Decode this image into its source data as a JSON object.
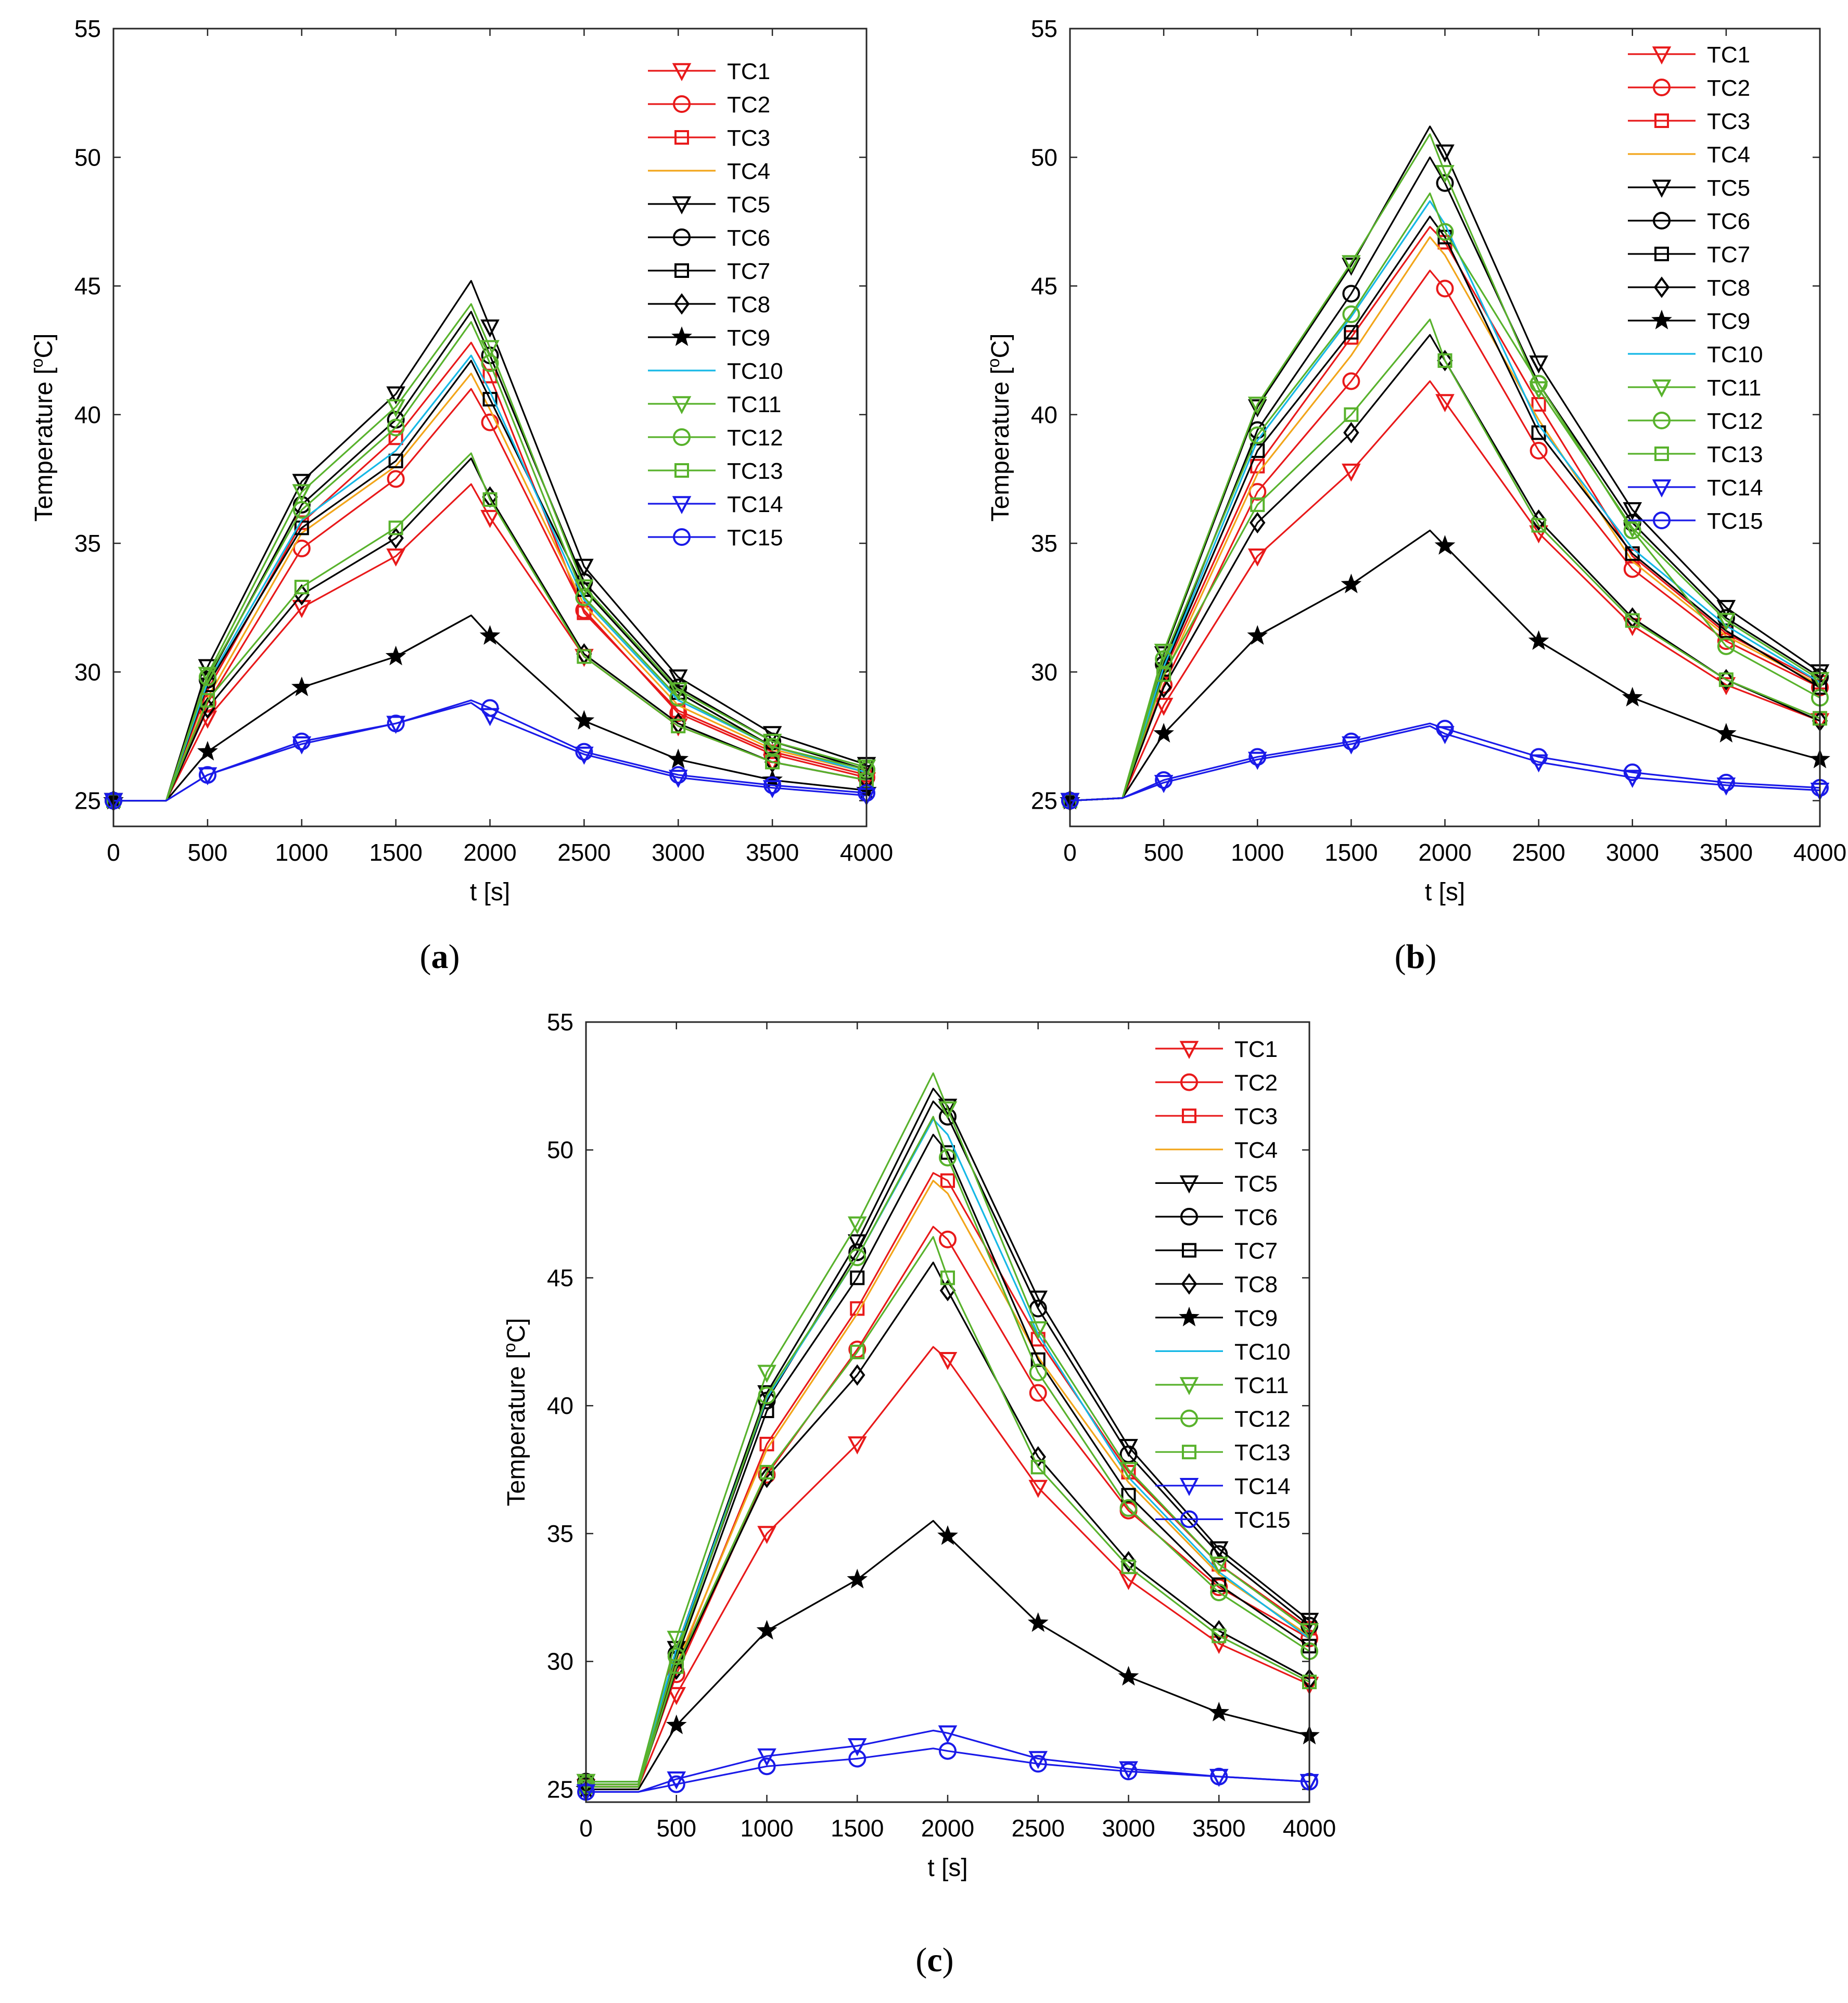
{
  "series_styles": [
    {
      "name": "TC1",
      "color": "#e8191a",
      "marker": "tri-down"
    },
    {
      "name": "TC2",
      "color": "#e8191a",
      "marker": "circle"
    },
    {
      "name": "TC3",
      "color": "#e8191a",
      "marker": "square"
    },
    {
      "name": "TC4",
      "color": "#f2a51a",
      "marker": "none"
    },
    {
      "name": "TC5",
      "color": "#000000",
      "marker": "tri-down"
    },
    {
      "name": "TC6",
      "color": "#000000",
      "marker": "circle"
    },
    {
      "name": "TC7",
      "color": "#000000",
      "marker": "square"
    },
    {
      "name": "TC8",
      "color": "#000000",
      "marker": "diamond"
    },
    {
      "name": "TC9",
      "color": "#000000",
      "marker": "star"
    },
    {
      "name": "TC10",
      "color": "#16b8e6",
      "marker": "none"
    },
    {
      "name": "TC11",
      "color": "#58b22c",
      "marker": "tri-down"
    },
    {
      "name": "TC12",
      "color": "#58b22c",
      "marker": "circle"
    },
    {
      "name": "TC13",
      "color": "#58b22c",
      "marker": "square"
    },
    {
      "name": "TC14",
      "color": "#1a1ae8",
      "marker": "tri-down"
    },
    {
      "name": "TC15",
      "color": "#1a1ae8",
      "marker": "circle"
    }
  ],
  "chart_data": [
    {
      "type": "line",
      "panel_label": "a",
      "xlabel": "t [s]",
      "ylabel": "Temperature [",
      "ylabel_sup": "o",
      "ylabel_unit": "C]",
      "xlim": [
        0,
        4000
      ],
      "ylim": [
        24,
        55
      ],
      "xticks": [
        0,
        500,
        1000,
        1500,
        2000,
        2500,
        3000,
        3500,
        4000
      ],
      "yticks": [
        25,
        30,
        35,
        40,
        45,
        50,
        55
      ],
      "x": [
        0,
        280,
        500,
        1000,
        1500,
        1900,
        2000,
        2500,
        3000,
        3500,
        4000
      ],
      "series": [
        {
          "name": "TC1",
          "values": [
            25,
            25,
            28.2,
            32.5,
            34.5,
            37.3,
            36.0,
            30.6,
            27.9,
            26.5,
            25.8
          ]
        },
        {
          "name": "TC2",
          "values": [
            25,
            25,
            28.8,
            34.8,
            37.5,
            41.0,
            39.7,
            32.4,
            28.4,
            26.8,
            25.9
          ]
        },
        {
          "name": "TC3",
          "values": [
            25,
            25,
            29.3,
            35.8,
            39.1,
            42.8,
            41.5,
            32.3,
            28.5,
            26.9,
            26.0
          ]
        },
        {
          "name": "TC4",
          "values": [
            25,
            25,
            29.0,
            35.4,
            38.0,
            41.6,
            40.2,
            32.6,
            28.7,
            27.0,
            26.1
          ]
        },
        {
          "name": "TC5",
          "values": [
            25,
            25,
            30.2,
            37.4,
            40.8,
            45.2,
            43.4,
            34.1,
            29.8,
            27.6,
            26.4
          ]
        },
        {
          "name": "TC6",
          "values": [
            25,
            25,
            29.7,
            36.5,
            39.8,
            44.0,
            42.3,
            33.5,
            29.4,
            27.3,
            26.2
          ]
        },
        {
          "name": "TC7",
          "values": [
            25,
            25,
            29.5,
            35.6,
            38.2,
            42.1,
            40.6,
            33.2,
            29.2,
            27.1,
            26.1
          ]
        },
        {
          "name": "TC8",
          "values": [
            25,
            25,
            28.6,
            33.0,
            35.2,
            38.3,
            36.8,
            30.7,
            28.0,
            26.5,
            25.8
          ]
        },
        {
          "name": "TC9",
          "values": [
            25,
            25,
            26.9,
            29.4,
            30.6,
            32.2,
            31.4,
            28.1,
            26.6,
            25.8,
            25.4
          ]
        },
        {
          "name": "TC10",
          "values": [
            25,
            25,
            29.6,
            35.9,
            38.6,
            42.3,
            40.9,
            32.8,
            28.9,
            27.1,
            26.1
          ]
        },
        {
          "name": "TC11",
          "values": [
            25,
            25,
            29.9,
            37.0,
            40.3,
            44.3,
            42.6,
            33.3,
            29.3,
            27.3,
            26.3
          ]
        },
        {
          "name": "TC12",
          "values": [
            25,
            25,
            29.8,
            36.3,
            39.5,
            43.6,
            42.0,
            32.9,
            29.0,
            27.1,
            26.2
          ]
        },
        {
          "name": "TC13",
          "values": [
            25,
            25,
            28.9,
            33.3,
            35.6,
            38.5,
            36.7,
            30.6,
            27.9,
            26.5,
            25.8
          ]
        },
        {
          "name": "TC14",
          "values": [
            25,
            25,
            26.0,
            27.2,
            28.0,
            28.8,
            28.3,
            26.8,
            25.9,
            25.5,
            25.2
          ]
        },
        {
          "name": "TC15",
          "values": [
            25,
            25,
            26.0,
            27.3,
            28.0,
            28.9,
            28.6,
            26.9,
            26.0,
            25.6,
            25.3
          ]
        }
      ]
    },
    {
      "type": "line",
      "panel_label": "b",
      "xlabel": "t [s]",
      "ylabel": "Temperature [",
      "ylabel_sup": "o",
      "ylabel_unit": "C]",
      "xlim": [
        0,
        4000
      ],
      "ylim": [
        24,
        55
      ],
      "xticks": [
        0,
        500,
        1000,
        1500,
        2000,
        2500,
        3000,
        3500,
        4000
      ],
      "yticks": [
        25,
        30,
        35,
        40,
        45,
        50,
        55
      ],
      "x": [
        0,
        280,
        500,
        1000,
        1500,
        1920,
        2000,
        2500,
        3000,
        3500,
        4000
      ],
      "series": [
        {
          "name": "TC1",
          "values": [
            25,
            25.1,
            28.7,
            34.5,
            37.8,
            41.3,
            40.5,
            35.4,
            31.8,
            29.5,
            28.1
          ]
        },
        {
          "name": "TC2",
          "values": [
            25,
            25.1,
            29.5,
            37.0,
            41.3,
            45.6,
            44.9,
            38.6,
            34.0,
            31.2,
            29.4
          ]
        },
        {
          "name": "TC3",
          "values": [
            25,
            25.1,
            30.0,
            38.0,
            43.0,
            47.3,
            46.7,
            40.4,
            34.5,
            31.5,
            29.6
          ]
        },
        {
          "name": "TC4",
          "values": [
            25,
            25.1,
            29.8,
            37.7,
            42.3,
            46.9,
            46.2,
            39.8,
            34.3,
            31.4,
            29.5
          ]
        },
        {
          "name": "TC5",
          "values": [
            25,
            25.1,
            30.7,
            40.3,
            45.8,
            51.2,
            50.2,
            42.0,
            36.3,
            32.5,
            30.0
          ]
        },
        {
          "name": "TC6",
          "values": [
            25,
            25.1,
            30.3,
            39.4,
            44.7,
            50.0,
            49.0,
            41.2,
            35.8,
            32.1,
            29.8
          ]
        },
        {
          "name": "TC7",
          "values": [
            25,
            25.1,
            30.1,
            38.6,
            43.2,
            47.7,
            46.9,
            39.3,
            34.6,
            31.6,
            29.4
          ]
        },
        {
          "name": "TC8",
          "values": [
            25,
            25.1,
            29.4,
            35.8,
            39.3,
            43.1,
            42.1,
            35.9,
            32.1,
            29.7,
            28.1
          ]
        },
        {
          "name": "TC9",
          "values": [
            25,
            25.1,
            27.6,
            31.4,
            33.4,
            35.5,
            34.9,
            31.2,
            29.0,
            27.6,
            26.6
          ]
        },
        {
          "name": "TC10",
          "values": [
            25,
            25.1,
            30.2,
            39.0,
            43.8,
            48.3,
            47.4,
            39.6,
            34.8,
            31.8,
            29.6
          ]
        },
        {
          "name": "TC11",
          "values": [
            25,
            25.1,
            30.8,
            40.4,
            45.9,
            50.9,
            49.4,
            41.0,
            35.6,
            32.0,
            29.7
          ]
        },
        {
          "name": "TC12",
          "values": [
            25,
            25.1,
            30.5,
            39.2,
            43.9,
            48.6,
            47.1,
            41.2,
            35.5,
            31.0,
            29.0
          ]
        },
        {
          "name": "TC13",
          "values": [
            25,
            25.1,
            29.9,
            36.5,
            40.0,
            43.7,
            42.1,
            35.7,
            32.0,
            29.7,
            28.2
          ]
        },
        {
          "name": "TC14",
          "values": [
            25,
            25.1,
            25.7,
            26.6,
            27.2,
            27.9,
            27.6,
            26.5,
            25.9,
            25.6,
            25.4
          ]
        },
        {
          "name": "TC15",
          "values": [
            25,
            25.1,
            25.8,
            26.7,
            27.3,
            28.0,
            27.8,
            26.7,
            26.1,
            25.7,
            25.5
          ]
        }
      ]
    },
    {
      "type": "line",
      "panel_label": "c",
      "xlabel": "t [s]",
      "ylabel": "Temperature [",
      "ylabel_sup": "o",
      "ylabel_unit": "C]",
      "xlim": [
        0,
        4000
      ],
      "ylim": [
        24.5,
        55
      ],
      "xticks": [
        0,
        500,
        1000,
        1500,
        2000,
        2500,
        3000,
        3500,
        4000
      ],
      "yticks": [
        25,
        30,
        35,
        40,
        45,
        50,
        55
      ],
      "x": [
        0,
        290,
        500,
        1000,
        1500,
        1920,
        2000,
        2500,
        3000,
        3500,
        4000
      ],
      "series": [
        {
          "name": "TC1",
          "values": [
            25.1,
            25.1,
            28.7,
            35.0,
            38.5,
            42.3,
            41.8,
            36.8,
            33.2,
            30.7,
            29.1
          ]
        },
        {
          "name": "TC2",
          "values": [
            25.2,
            25.2,
            29.5,
            37.3,
            42.2,
            47.0,
            46.5,
            40.5,
            35.9,
            32.9,
            30.9
          ]
        },
        {
          "name": "TC3",
          "values": [
            25.2,
            25.2,
            29.8,
            38.5,
            43.8,
            49.1,
            48.8,
            42.6,
            37.4,
            33.8,
            31.3
          ]
        },
        {
          "name": "TC4",
          "values": [
            25.2,
            25.2,
            29.9,
            38.3,
            43.6,
            48.8,
            48.3,
            41.9,
            37.0,
            33.4,
            31.0
          ]
        },
        {
          "name": "TC5",
          "values": [
            25.3,
            25.3,
            30.5,
            40.5,
            46.4,
            52.4,
            51.7,
            44.2,
            38.4,
            34.4,
            31.6
          ]
        },
        {
          "name": "TC6",
          "values": [
            25.3,
            25.3,
            30.3,
            40.2,
            46.0,
            51.9,
            51.3,
            43.8,
            38.1,
            34.2,
            31.4
          ]
        },
        {
          "name": "TC7",
          "values": [
            25.2,
            25.2,
            30.1,
            39.8,
            45.0,
            50.6,
            49.9,
            41.8,
            36.5,
            33.0,
            30.6
          ]
        },
        {
          "name": "TC8",
          "values": [
            25.1,
            25.1,
            29.7,
            37.2,
            41.2,
            45.6,
            44.5,
            38.0,
            33.9,
            31.2,
            29.3
          ]
        },
        {
          "name": "TC9",
          "values": [
            25.0,
            25.0,
            27.5,
            31.2,
            33.2,
            35.5,
            34.9,
            31.5,
            29.4,
            28.0,
            27.1
          ]
        },
        {
          "name": "TC10",
          "values": [
            25.3,
            25.3,
            30.5,
            40.3,
            45.8,
            51.2,
            50.6,
            42.8,
            37.2,
            33.5,
            30.9
          ]
        },
        {
          "name": "TC11",
          "values": [
            25.3,
            25.3,
            30.9,
            41.3,
            47.1,
            53.0,
            51.6,
            43.0,
            37.5,
            33.8,
            31.2
          ]
        },
        {
          "name": "TC12",
          "values": [
            25.2,
            25.2,
            30.2,
            40.4,
            45.8,
            51.3,
            49.7,
            41.3,
            36.0,
            32.7,
            30.4
          ]
        },
        {
          "name": "TC13",
          "values": [
            25.1,
            25.1,
            29.8,
            37.4,
            42.1,
            46.6,
            45.0,
            37.6,
            33.7,
            31.0,
            29.2
          ]
        },
        {
          "name": "TC14",
          "values": [
            24.9,
            24.9,
            25.4,
            26.3,
            26.7,
            27.3,
            27.2,
            26.2,
            25.8,
            25.5,
            25.3
          ]
        },
        {
          "name": "TC15",
          "values": [
            24.9,
            24.9,
            25.2,
            25.9,
            26.2,
            26.6,
            26.5,
            26.0,
            25.7,
            25.5,
            25.3
          ]
        }
      ]
    }
  ]
}
